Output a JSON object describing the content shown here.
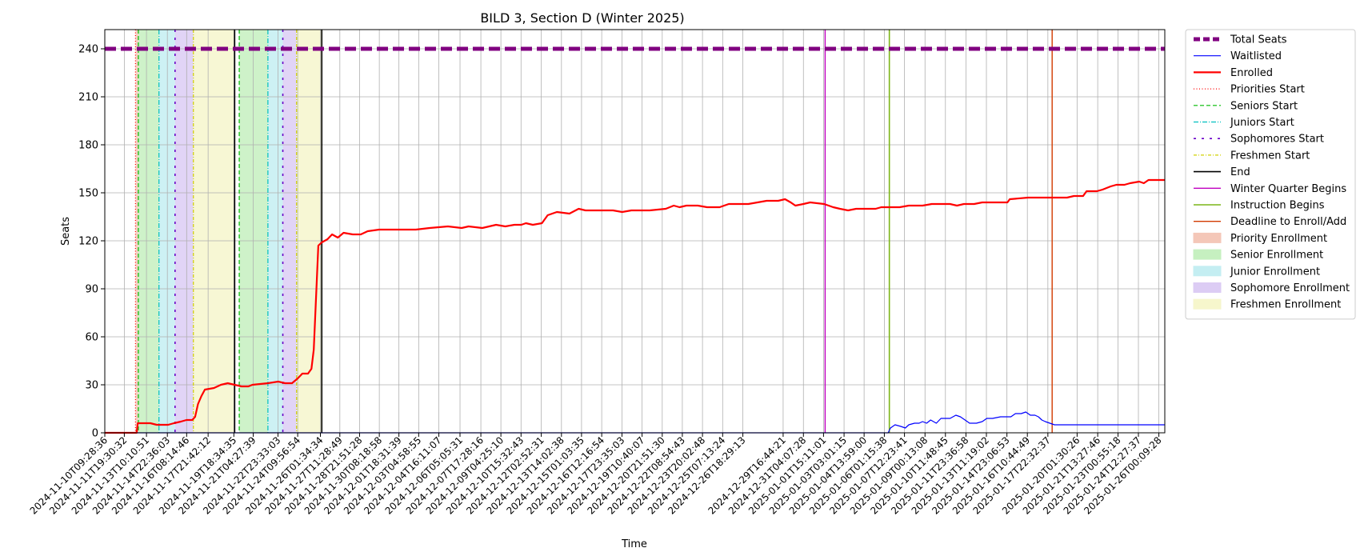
{
  "chart_data": {
    "type": "line",
    "title": "BILD 3, Section D (Winter 2025)",
    "xlabel": "Time",
    "ylabel": "Seats",
    "ylim": [
      0,
      252
    ],
    "yticks": [
      0,
      30,
      60,
      90,
      120,
      150,
      180,
      210,
      240
    ],
    "grid": true,
    "legend_position": "outside-right",
    "x_start": "2024-11-10T09:28:36",
    "x_end": "2025-01-26T10:30:00",
    "xtick_labels": [
      "2024-11-10T09:28:36",
      "2024-11-11T19:30:32",
      "2024-11-13T10:10:51",
      "2024-11-14T22:36:03",
      "2024-11-16T08:14:46",
      "2024-11-17T21:42:12",
      "2024-11-19T18:34:35",
      "2024-11-21T04:27:39",
      "2024-11-22T23:33:03",
      "2024-11-24T09:56:54",
      "2024-11-26T01:34:34",
      "2024-11-27T11:28:49",
      "2024-11-28T21:51:28",
      "2024-11-30T08:18:58",
      "2024-12-01T18:31:39",
      "2024-12-03T04:58:55",
      "2024-12-04T16:11:07",
      "2024-12-06T05:05:31",
      "2024-12-07T17:28:16",
      "2024-12-09T04:25:10",
      "2024-12-10T15:32:43",
      "2024-12-12T02:52:31",
      "2024-12-13T14:02:38",
      "2024-12-15T01:03:35",
      "2024-12-16T12:16:54",
      "2024-12-17T23:35:03",
      "2024-12-19T10:40:07",
      "2024-12-20T21:51:30",
      "2024-12-22T08:54:43",
      "2024-12-23T20:02:48",
      "2024-12-25T07:13:24",
      "2024-12-26T18:29:13",
      "2024-12-29T16:44:21",
      "2024-12-31T04:07:28",
      "2025-01-01T15:11:01",
      "2025-01-03T03:01:15",
      "2025-01-04T13:59:00",
      "2025-01-06T01:15:38",
      "2025-01-07T12:23:41",
      "2025-01-09T00:13:08",
      "2025-01-10T11:48:45",
      "2025-01-11T23:36:58",
      "2025-01-13T11:19:02",
      "2025-01-14T23:06:53",
      "2025-01-16T10:44:49",
      "2025-01-17T22:32:37",
      "2025-01-20T01:30:26",
      "2025-01-21T13:27:46",
      "2025-01-23T00:55:18",
      "2025-01-24T12:27:37",
      "2025-01-26T00:09:28"
    ],
    "series": [
      {
        "name": "Total Seats",
        "color": "#800080",
        "style": "dashed",
        "width": 5,
        "points": [
          [
            "2024-11-10T09:28:36",
            240
          ],
          [
            "2025-01-26T10:30:00",
            240
          ]
        ]
      },
      {
        "name": "Waitlisted",
        "color": "#0000ff",
        "style": "solid",
        "width": 1.2,
        "points": [
          [
            "2024-11-10T09:28:36",
            0
          ],
          [
            "2025-01-06T08:00:00",
            0
          ],
          [
            "2025-01-06T12:00:00",
            3
          ],
          [
            "2025-01-06T20:00:00",
            5
          ],
          [
            "2025-01-07T06:00:00",
            4
          ],
          [
            "2025-01-07T14:00:00",
            3
          ],
          [
            "2025-01-07T20:00:00",
            5
          ],
          [
            "2025-01-08T06:00:00",
            6
          ],
          [
            "2025-01-08T14:00:00",
            6
          ],
          [
            "2025-01-08T20:00:00",
            7
          ],
          [
            "2025-01-09T03:00:00",
            6
          ],
          [
            "2025-01-09T10:00:00",
            8
          ],
          [
            "2025-01-09T20:00:00",
            6
          ],
          [
            "2025-01-10T04:00:00",
            9
          ],
          [
            "2025-01-10T12:00:00",
            9
          ],
          [
            "2025-01-10T20:00:00",
            9
          ],
          [
            "2025-01-11T06:00:00",
            11
          ],
          [
            "2025-01-11T14:00:00",
            10
          ],
          [
            "2025-01-11T22:00:00",
            8
          ],
          [
            "2025-01-12T06:00:00",
            6
          ],
          [
            "2025-01-12T18:00:00",
            6
          ],
          [
            "2025-01-13T04:00:00",
            7
          ],
          [
            "2025-01-13T12:00:00",
            9
          ],
          [
            "2025-01-13T22:00:00",
            9
          ],
          [
            "2025-01-14T12:00:00",
            10
          ],
          [
            "2025-01-15T06:00:00",
            10
          ],
          [
            "2025-01-15T14:00:00",
            12
          ],
          [
            "2025-01-16T00:00:00",
            12
          ],
          [
            "2025-01-16T08:00:00",
            13
          ],
          [
            "2025-01-16T16:00:00",
            11
          ],
          [
            "2025-01-17T00:00:00",
            11
          ],
          [
            "2025-01-17T06:00:00",
            10
          ],
          [
            "2025-01-17T12:00:00",
            8
          ],
          [
            "2025-01-17T18:00:00",
            7
          ],
          [
            "2025-01-18T02:00:00",
            6
          ],
          [
            "2025-01-18T10:00:00",
            5
          ],
          [
            "2025-01-26T10:30:00",
            5
          ]
        ]
      },
      {
        "name": "Enrolled",
        "color": "#ff0000",
        "style": "solid",
        "width": 2.2,
        "points": [
          [
            "2024-11-10T09:28:36",
            0
          ],
          [
            "2024-11-12T17:00:00",
            0
          ],
          [
            "2024-11-12T19:00:00",
            6
          ],
          [
            "2024-11-13T17:00:00",
            6
          ],
          [
            "2024-11-14T04:00:00",
            5
          ],
          [
            "2024-11-15T00:00:00",
            5
          ],
          [
            "2024-11-15T10:00:00",
            6
          ],
          [
            "2024-11-15T22:00:00",
            7
          ],
          [
            "2024-11-16T08:00:00",
            8
          ],
          [
            "2024-11-16T18:00:00",
            8
          ],
          [
            "2024-11-16T23:00:00",
            10
          ],
          [
            "2024-11-17T04:00:00",
            18
          ],
          [
            "2024-11-17T10:00:00",
            23
          ],
          [
            "2024-11-17T16:00:00",
            27
          ],
          [
            "2024-11-18T08:00:00",
            28
          ],
          [
            "2024-11-18T20:00:00",
            30
          ],
          [
            "2024-11-19T08:00:00",
            31
          ],
          [
            "2024-11-19T20:00:00",
            30
          ],
          [
            "2024-11-20T08:00:00",
            29
          ],
          [
            "2024-11-20T20:00:00",
            29
          ],
          [
            "2024-11-21T03:00:00",
            30
          ],
          [
            "2024-11-22T06:00:00",
            31
          ],
          [
            "2024-11-23T00:00:00",
            32
          ],
          [
            "2024-11-23T12:00:00",
            31
          ],
          [
            "2024-11-24T00:00:00",
            31
          ],
          [
            "2024-11-24T10:00:00",
            34
          ],
          [
            "2024-11-24T18:00:00",
            37
          ],
          [
            "2024-11-25T04:00:00",
            37
          ],
          [
            "2024-11-25T10:00:00",
            40
          ],
          [
            "2024-11-25T14:00:00",
            52
          ],
          [
            "2024-11-25T18:00:00",
            85
          ],
          [
            "2024-11-25T22:00:00",
            117
          ],
          [
            "2024-11-26T04:00:00",
            119
          ],
          [
            "2024-11-26T14:00:00",
            121
          ],
          [
            "2024-11-26T22:00:00",
            124
          ],
          [
            "2024-11-27T08:00:00",
            122
          ],
          [
            "2024-11-27T18:00:00",
            125
          ],
          [
            "2024-11-28T10:00:00",
            124
          ],
          [
            "2024-11-29T00:00:00",
            124
          ],
          [
            "2024-11-29T12:00:00",
            126
          ],
          [
            "2024-11-30T08:00:00",
            127
          ],
          [
            "2024-12-03T00:00:00",
            127
          ],
          [
            "2024-12-04T00:00:00",
            128
          ],
          [
            "2024-12-05T08:00:00",
            129
          ],
          [
            "2024-12-06T08:00:00",
            128
          ],
          [
            "2024-12-06T20:00:00",
            129
          ],
          [
            "2024-12-07T20:00:00",
            128
          ],
          [
            "2024-12-08T08:00:00",
            129
          ],
          [
            "2024-12-08T20:00:00",
            130
          ],
          [
            "2024-12-09T12:00:00",
            129
          ],
          [
            "2024-12-10T04:00:00",
            130
          ],
          [
            "2024-12-10T16:00:00",
            130
          ],
          [
            "2024-12-11T00:00:00",
            131
          ],
          [
            "2024-12-11T12:00:00",
            130
          ],
          [
            "2024-12-12T04:00:00",
            131
          ],
          [
            "2024-12-12T14:00:00",
            136
          ],
          [
            "2024-12-13T06:00:00",
            138
          ],
          [
            "2024-12-14T04:00:00",
            137
          ],
          [
            "2024-12-14T20:00:00",
            140
          ],
          [
            "2024-12-15T08:00:00",
            139
          ],
          [
            "2024-12-17T08:00:00",
            139
          ],
          [
            "2024-12-18T00:00:00",
            138
          ],
          [
            "2024-12-18T16:00:00",
            139
          ],
          [
            "2024-12-20T00:00:00",
            139
          ],
          [
            "2024-12-21T04:00:00",
            140
          ],
          [
            "2024-12-21T18:00:00",
            142
          ],
          [
            "2024-12-22T04:00:00",
            141
          ],
          [
            "2024-12-22T16:00:00",
            142
          ],
          [
            "2024-12-23T12:00:00",
            142
          ],
          [
            "2024-12-24T04:00:00",
            141
          ],
          [
            "2024-12-25T02:00:00",
            141
          ],
          [
            "2024-12-25T18:00:00",
            143
          ],
          [
            "2024-12-27T04:00:00",
            143
          ],
          [
            "2024-12-27T20:00:00",
            144
          ],
          [
            "2024-12-28T12:00:00",
            145
          ],
          [
            "2024-12-29T08:00:00",
            145
          ],
          [
            "2024-12-29T20:00:00",
            146
          ],
          [
            "2024-12-30T06:00:00",
            144
          ],
          [
            "2024-12-30T14:00:00",
            142
          ],
          [
            "2024-12-31T04:00:00",
            143
          ],
          [
            "2024-12-31T16:00:00",
            144
          ],
          [
            "2025-01-01T16:00:00",
            143
          ],
          [
            "2025-01-02T08:00:00",
            141
          ],
          [
            "2025-01-02T20:00:00",
            140
          ],
          [
            "2025-01-03T10:00:00",
            139
          ],
          [
            "2025-01-04T00:00:00",
            140
          ],
          [
            "2025-01-05T10:00:00",
            140
          ],
          [
            "2025-01-05T20:00:00",
            141
          ],
          [
            "2025-01-07T04:00:00",
            141
          ],
          [
            "2025-01-07T20:00:00",
            142
          ],
          [
            "2025-01-08T20:00:00",
            142
          ],
          [
            "2025-01-09T12:00:00",
            143
          ],
          [
            "2025-01-10T20:00:00",
            143
          ],
          [
            "2025-01-11T08:00:00",
            142
          ],
          [
            "2025-01-11T20:00:00",
            143
          ],
          [
            "2025-01-12T14:00:00",
            143
          ],
          [
            "2025-01-13T04:00:00",
            144
          ],
          [
            "2025-01-15T00:00:00",
            144
          ],
          [
            "2025-01-15T04:00:00",
            146
          ],
          [
            "2025-01-16T12:00:00",
            147
          ],
          [
            "2025-01-18T12:00:00",
            147
          ],
          [
            "2025-01-19T08:00:00",
            147
          ],
          [
            "2025-01-19T20:00:00",
            148
          ],
          [
            "2025-01-20T12:00:00",
            148
          ],
          [
            "2025-01-20T18:00:00",
            151
          ],
          [
            "2025-01-21T12:00:00",
            151
          ],
          [
            "2025-01-21T22:00:00",
            152
          ],
          [
            "2025-01-22T12:00:00",
            154
          ],
          [
            "2025-01-22T22:00:00",
            155
          ],
          [
            "2025-01-23T12:00:00",
            155
          ],
          [
            "2025-01-23T22:00:00",
            156
          ],
          [
            "2025-01-24T14:00:00",
            157
          ],
          [
            "2025-01-24T22:00:00",
            156
          ],
          [
            "2025-01-25T06:00:00",
            158
          ],
          [
            "2025-01-25T14:00:00",
            158
          ],
          [
            "2025-01-26T10:30:00",
            158
          ]
        ]
      }
    ]
  },
  "legend": [
    {
      "label": "Total Seats",
      "kind": "line",
      "color": "#800080",
      "dash": "8,4",
      "width": 5
    },
    {
      "label": "Waitlisted",
      "kind": "line",
      "color": "#0000ff",
      "dash": "",
      "width": 1.2
    },
    {
      "label": "Enrolled",
      "kind": "line",
      "color": "#ff0000",
      "dash": "",
      "width": 2.2
    },
    {
      "label": "Priorities Start",
      "kind": "line",
      "color": "#ff0000",
      "dash": "1,2.5",
      "width": 1.2
    },
    {
      "label": "Seniors Start",
      "kind": "line",
      "color": "#00bb00",
      "dash": "5,3",
      "width": 1.2
    },
    {
      "label": "Juniors Start",
      "kind": "line",
      "color": "#00bfbf",
      "dash": "6,2,1,2",
      "width": 1.2
    },
    {
      "label": "Sophomores Start",
      "kind": "line",
      "color": "#6a00c8",
      "dash": "3,7",
      "width": 1.6
    },
    {
      "label": "Freshmen Start",
      "kind": "line",
      "color": "#d0d000",
      "dash": "4,2,1,2",
      "width": 1.2
    },
    {
      "label": "End",
      "kind": "line",
      "color": "#000000",
      "dash": "",
      "width": 1.6
    },
    {
      "label": "Winter Quarter Begins",
      "kind": "line",
      "color": "#c000c0",
      "dash": "",
      "width": 1.4
    },
    {
      "label": "Instruction Begins",
      "kind": "line",
      "color": "#7cb518",
      "dash": "",
      "width": 1.6
    },
    {
      "label": "Deadline to Enroll/Add",
      "kind": "line",
      "color": "#d23a00",
      "dash": "",
      "width": 1.4
    },
    {
      "label": "Priority Enrollment",
      "kind": "patch",
      "color": "#f4c7b8",
      "dash": "",
      "width": 0
    },
    {
      "label": "Senior Enrollment",
      "kind": "patch",
      "color": "#c6f0c0",
      "dash": "",
      "width": 0
    },
    {
      "label": "Junior Enrollment",
      "kind": "patch",
      "color": "#c4eef2",
      "dash": "",
      "width": 0
    },
    {
      "label": "Sophomore Enrollment",
      "kind": "patch",
      "color": "#dcccf4",
      "dash": "",
      "width": 0
    },
    {
      "label": "Freshmen Enrollment",
      "kind": "patch",
      "color": "#f6f6cc",
      "dash": "",
      "width": 0
    }
  ],
  "enrollment_windows": [
    {
      "name": "Priority Enrollment",
      "color": "#f4c7b8",
      "start": "2024-11-12T15:00:00",
      "end": "2024-11-12T20:00:00"
    },
    {
      "name": "Senior Enrollment",
      "color": "#c6f0c0",
      "start": "2024-11-12T20:00:00",
      "end": "2024-11-14T08:00:00"
    },
    {
      "name": "Junior Enrollment",
      "color": "#c4eef2",
      "start": "2024-11-14T08:00:00",
      "end": "2024-11-15T12:00:00"
    },
    {
      "name": "Sophomore Enrollment",
      "color": "#dcccf4",
      "start": "2024-11-15T12:00:00",
      "end": "2024-11-16T20:00:00"
    },
    {
      "name": "Freshmen Enrollment",
      "color": "#f6f6cc",
      "start": "2024-11-16T20:00:00",
      "end": "2024-11-19T20:00:00"
    },
    {
      "name": "Senior Enrollment",
      "color": "#c6f0c0",
      "start": "2024-11-20T04:00:00",
      "end": "2024-11-22T06:00:00"
    },
    {
      "name": "Junior Enrollment",
      "color": "#c4eef2",
      "start": "2024-11-22T06:00:00",
      "end": "2024-11-23T08:00:00"
    },
    {
      "name": "Sophomore Enrollment",
      "color": "#dcccf4",
      "start": "2024-11-23T08:00:00",
      "end": "2024-11-24T08:00:00"
    },
    {
      "name": "Freshmen Enrollment",
      "color": "#f6f6cc",
      "start": "2024-11-24T08:00:00",
      "end": "2024-11-26T04:00:00"
    }
  ],
  "event_lines": [
    {
      "name": "Priorities Start",
      "color": "#ff0000",
      "dash": "1,2.5",
      "width": 1.2,
      "time": "2024-11-12T15:00:00"
    },
    {
      "name": "Seniors Start",
      "color": "#00bb00",
      "dash": "5,3",
      "width": 1.2,
      "time": "2024-11-12T20:00:00"
    },
    {
      "name": "Juniors Start",
      "color": "#00bfbf",
      "dash": "6,2,1,2",
      "width": 1.2,
      "time": "2024-11-14T08:00:00"
    },
    {
      "name": "Sophomores Start",
      "color": "#6a00c8",
      "dash": "3,7",
      "width": 1.6,
      "time": "2024-11-15T12:00:00"
    },
    {
      "name": "Freshmen Start",
      "color": "#d0d000",
      "dash": "4,2,1,2",
      "width": 1.2,
      "time": "2024-11-16T20:00:00"
    },
    {
      "name": "End",
      "color": "#000000",
      "dash": "",
      "width": 1.6,
      "time": "2024-11-19T20:00:00"
    },
    {
      "name": "Seniors Start",
      "color": "#00bb00",
      "dash": "5,3",
      "width": 1.2,
      "time": "2024-11-20T04:00:00"
    },
    {
      "name": "Juniors Start",
      "color": "#00bfbf",
      "dash": "6,2,1,2",
      "width": 1.2,
      "time": "2024-11-22T06:00:00"
    },
    {
      "name": "Sophomores Start",
      "color": "#6a00c8",
      "dash": "3,7",
      "width": 1.6,
      "time": "2024-11-23T08:00:00"
    },
    {
      "name": "Freshmen Start",
      "color": "#d0d000",
      "dash": "4,2,1,2",
      "width": 1.2,
      "time": "2024-11-24T08:00:00"
    },
    {
      "name": "End",
      "color": "#000000",
      "dash": "",
      "width": 1.6,
      "time": "2024-11-26T04:00:00"
    },
    {
      "name": "Winter Quarter Begins",
      "color": "#c000c0",
      "dash": "",
      "width": 1.4,
      "time": "2025-01-01T18:00:00"
    },
    {
      "name": "Instruction Begins",
      "color": "#7cb518",
      "dash": "",
      "width": 1.6,
      "time": "2025-01-06T10:00:00"
    },
    {
      "name": "Deadline to Enroll/Add",
      "color": "#d23a00",
      "dash": "",
      "width": 1.4,
      "time": "2025-01-18T06:00:00"
    }
  ]
}
